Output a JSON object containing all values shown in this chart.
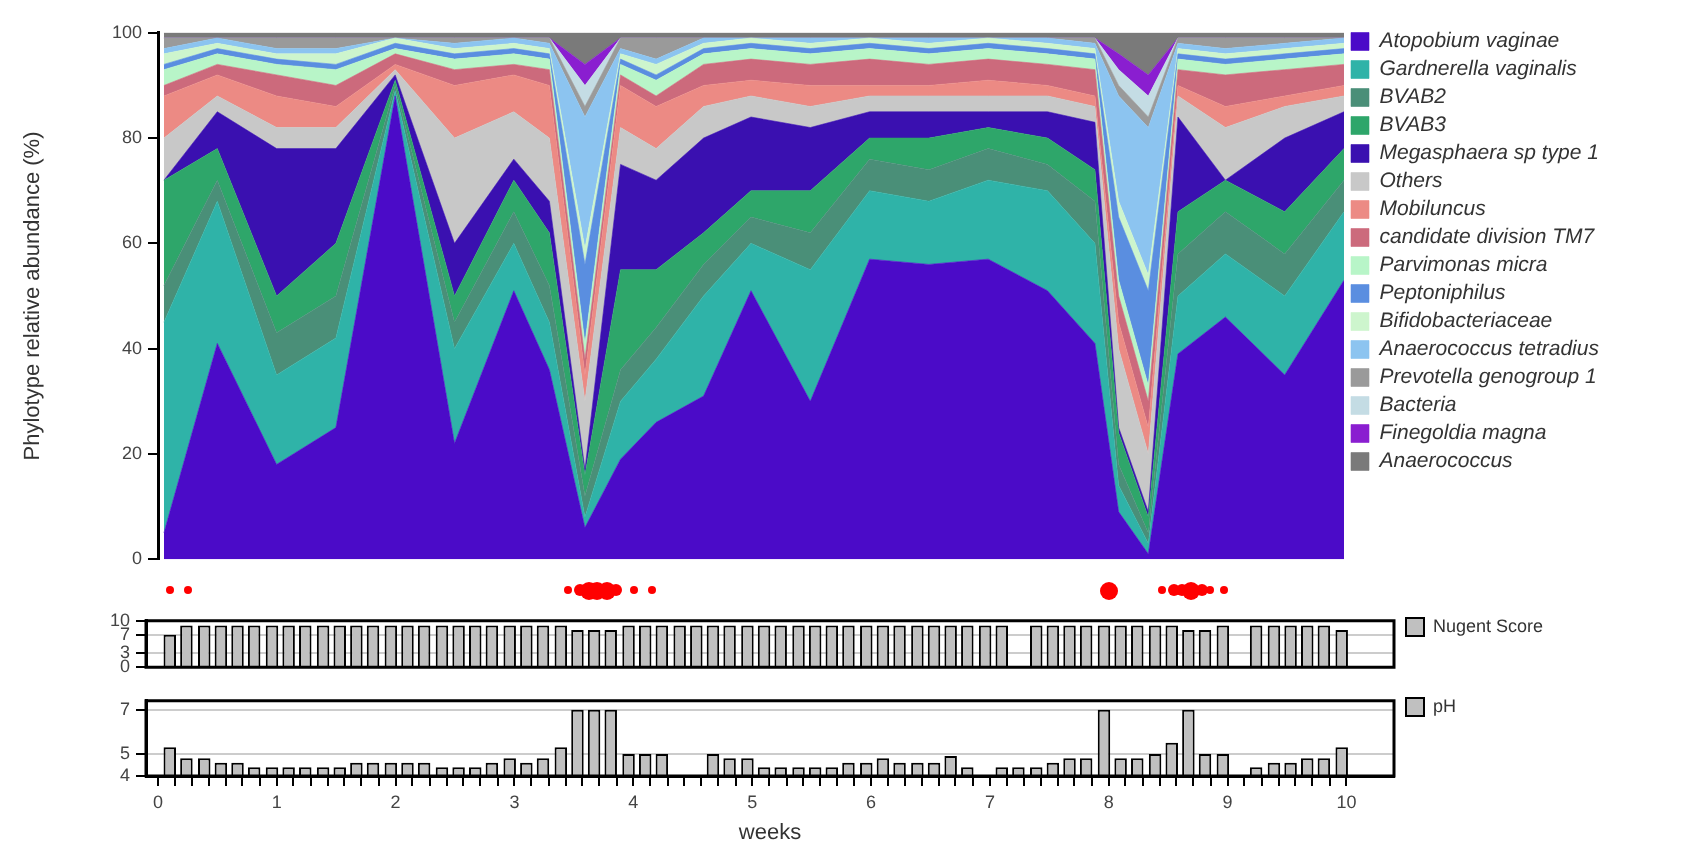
{
  "chart_data": [
    {
      "type": "area",
      "stacked": true,
      "ylabel": "Phylotype relative abundance (%)",
      "legend": "right",
      "tick_labels": "y",
      "xlim": [
        0,
        10
      ],
      "xticks": [
        0,
        1,
        2,
        3,
        4,
        5,
        6,
        7,
        8,
        9,
        10
      ],
      "ylim": [
        0,
        100
      ],
      "yticks": [
        0,
        20,
        40,
        60,
        80,
        100
      ],
      "x": [
        0.05,
        0.5,
        1,
        1.5,
        2,
        2.5,
        3,
        3.3,
        3.6,
        3.9,
        4.2,
        4.6,
        5,
        5.5,
        6,
        6.5,
        7,
        7.5,
        7.9,
        8.1,
        8.35,
        8.6,
        9,
        9.5,
        10
      ],
      "series": [
        {
          "name": "Atopobium vaginae",
          "color": "#4b0bc8",
          "values": [
            5,
            41,
            18,
            25,
            88,
            22,
            51,
            36,
            6,
            19,
            26,
            31,
            51,
            30,
            57,
            56,
            57,
            51,
            41,
            9,
            1,
            39,
            46,
            35,
            53
          ]
        },
        {
          "name": "Gardnerella vaginalis",
          "color": "#2fb3a8",
          "values": [
            40,
            27,
            17,
            17,
            1,
            18,
            9,
            9,
            2,
            11,
            12,
            19,
            9,
            25,
            13,
            12,
            15,
            19,
            19,
            5,
            2,
            11,
            12,
            15,
            13
          ]
        },
        {
          "name": "BVAB2",
          "color": "#4a8f78",
          "values": [
            7,
            4,
            8,
            8,
            1,
            5,
            6,
            7,
            4,
            6,
            6,
            6,
            5,
            7,
            6,
            6,
            6,
            5,
            8,
            4,
            2,
            8,
            8,
            8,
            6
          ]
        },
        {
          "name": "BVAB3",
          "color": "#2ea66a",
          "values": [
            20,
            6,
            7,
            10,
            1,
            5,
            6,
            10,
            4,
            19,
            11,
            6,
            5,
            8,
            4,
            6,
            4,
            5,
            6,
            6,
            3,
            8,
            6,
            8,
            6
          ]
        },
        {
          "name": "Megasphaera sp type 1",
          "color": "#3a10b0",
          "values": [
            0,
            7,
            28,
            18,
            1,
            10,
            4,
            6,
            1,
            20,
            17,
            18,
            14,
            12,
            5,
            5,
            3,
            5,
            9,
            1,
            1,
            18,
            0,
            14,
            7
          ]
        },
        {
          "name": "Others",
          "color": "#c8c8c8",
          "values": [
            8,
            3,
            4,
            4,
            1,
            20,
            9,
            12,
            13,
            7,
            6,
            6,
            4,
            4,
            3,
            3,
            3,
            3,
            3,
            15,
            11,
            4,
            10,
            6,
            3
          ]
        },
        {
          "name": "Mobiluncus",
          "color": "#ec8a84",
          "values": [
            8,
            4,
            6,
            4,
            1,
            10,
            7,
            10,
            5,
            8,
            8,
            4,
            3,
            4,
            2,
            2,
            3,
            2,
            2,
            5,
            5,
            2,
            4,
            2,
            2
          ]
        },
        {
          "name": "candidate division TM7",
          "color": "#cc6a7c",
          "values": [
            2,
            2,
            4,
            4,
            2,
            3,
            2,
            3,
            3,
            2,
            2,
            4,
            4,
            4,
            5,
            4,
            4,
            4,
            5,
            5,
            5,
            3,
            6,
            5,
            4
          ]
        },
        {
          "name": "Parvimonas micra",
          "color": "#b8f5c8",
          "values": [
            3,
            2,
            2,
            3,
            1,
            2,
            2,
            2,
            3,
            2,
            3,
            2,
            2,
            2,
            2,
            2,
            2,
            2,
            2,
            3,
            3,
            2,
            2,
            2,
            2
          ]
        },
        {
          "name": "Peptoniphilus",
          "color": "#5a8ee0",
          "values": [
            1,
            1,
            1,
            1,
            1,
            1,
            1,
            1,
            15,
            1,
            1,
            1,
            1,
            1,
            1,
            1,
            1,
            1,
            1,
            12,
            18,
            1,
            1,
            1,
            1
          ]
        },
        {
          "name": "Bifidobacteriaceae",
          "color": "#cdf5cd",
          "values": [
            2,
            1,
            1,
            2,
            1,
            1,
            1,
            1,
            3,
            1,
            2,
            1,
            1,
            1,
            1,
            1,
            1,
            1,
            1,
            3,
            3,
            1,
            1,
            1,
            1
          ]
        },
        {
          "name": "Anaerococcus tetradius",
          "color": "#8cc4f0",
          "values": [
            1,
            1,
            1,
            1,
            0,
            1,
            1,
            1,
            25,
            1,
            1,
            1,
            0,
            1,
            0,
            1,
            0,
            1,
            1,
            20,
            28,
            1,
            1,
            1,
            1
          ]
        },
        {
          "name": "Prevotella genogroup 1",
          "color": "#9a9a9a",
          "values": [
            2,
            0,
            2,
            2,
            0,
            1,
            0,
            1,
            2,
            2,
            4,
            0,
            0,
            0,
            0,
            0,
            0,
            0,
            1,
            2,
            2,
            1,
            2,
            1,
            0
          ]
        },
        {
          "name": "Bacteria",
          "color": "#c4dce4",
          "values": [
            0,
            0,
            0,
            0,
            0,
            0,
            0,
            0,
            4,
            0,
            0,
            0,
            0,
            0,
            0,
            0,
            0,
            0,
            0,
            3,
            4,
            0,
            0,
            0,
            0
          ]
        },
        {
          "name": "Finegoldia magna",
          "color": "#8a1ed0",
          "values": [
            0,
            0,
            0,
            0,
            0,
            0,
            0,
            0,
            4,
            0,
            0,
            0,
            0,
            0,
            0,
            0,
            0,
            0,
            0,
            3,
            4,
            0,
            0,
            0,
            0
          ]
        },
        {
          "name": "Anaerococcus",
          "color": "#7a7a7a",
          "values": [
            1,
            1,
            1,
            1,
            1,
            1,
            1,
            1,
            6,
            1,
            1,
            1,
            1,
            1,
            1,
            1,
            1,
            1,
            1,
            4,
            8,
            1,
            1,
            1,
            1
          ]
        }
      ]
    },
    {
      "type": "bar",
      "legend": "right",
      "tick_labels": "y",
      "grid": "y",
      "xlim": [
        -0.1,
        10.4
      ],
      "xticks": [
        0,
        1,
        2,
        3,
        4,
        5,
        6,
        7,
        8,
        9,
        10
      ],
      "ylim": [
        0,
        10
      ],
      "yticks": [
        0,
        3,
        7,
        10
      ],
      "x": [
        0.1,
        0.24,
        0.39,
        0.53,
        0.67,
        0.81,
        0.96,
        1.1,
        1.24,
        1.39,
        1.53,
        1.67,
        1.81,
        1.96,
        2.1,
        2.24,
        2.39,
        2.53,
        2.67,
        2.81,
        2.96,
        3.1,
        3.24,
        3.39,
        3.53,
        3.67,
        3.81,
        3.96,
        4.1,
        4.24,
        4.39,
        4.53,
        4.67,
        4.81,
        4.96,
        5.1,
        5.24,
        5.39,
        5.53,
        5.67,
        5.81,
        5.96,
        6.1,
        6.24,
        6.39,
        6.53,
        6.67,
        6.81,
        6.96,
        7.1,
        7.24,
        7.39,
        7.53,
        7.67,
        7.81,
        7.96,
        8.1,
        8.24,
        8.39,
        8.53,
        8.67,
        8.81,
        8.96,
        9.1,
        9.24,
        9.39,
        9.53,
        9.67,
        9.81,
        9.96
      ],
      "series": [
        {
          "name": "Nugent Score",
          "color": "#c0c0c0",
          "values": [
            7,
            9,
            9,
            9,
            9,
            9,
            9,
            9,
            9,
            9,
            9,
            9,
            9,
            9,
            9,
            9,
            9,
            9,
            9,
            9,
            9,
            9,
            9,
            9,
            8,
            8,
            8,
            9,
            9,
            9,
            9,
            9,
            9,
            9,
            9,
            9,
            9,
            9,
            9,
            9,
            9,
            9,
            9,
            9,
            9,
            9,
            9,
            9,
            9,
            9,
            null,
            9,
            9,
            9,
            9,
            9,
            9,
            9,
            9,
            9,
            8,
            8,
            9,
            null,
            9,
            9,
            9,
            9,
            9,
            8
          ]
        }
      ]
    },
    {
      "type": "bar",
      "legend": "right",
      "grid": "y",
      "xlabel": "weeks",
      "xlim": [
        -0.1,
        10.4
      ],
      "ylim": [
        4,
        7.4
      ],
      "yticks": [
        4,
        5,
        7
      ],
      "xticks": [
        0,
        {
          "value": 0.14,
          "label": null
        },
        {
          "value": 0.29,
          "label": null
        },
        {
          "value": 0.43,
          "label": null
        },
        {
          "value": 0.57,
          "label": null
        },
        {
          "value": 0.71,
          "label": null
        },
        {
          "value": 0.86,
          "label": null
        },
        1,
        {
          "value": 1.14,
          "label": null
        },
        {
          "value": 1.29,
          "label": null
        },
        {
          "value": 1.43,
          "label": null
        },
        {
          "value": 1.57,
          "label": null
        },
        {
          "value": 1.71,
          "label": null
        },
        {
          "value": 1.86,
          "label": null
        },
        2,
        {
          "value": 2.14,
          "label": null
        },
        {
          "value": 2.29,
          "label": null
        },
        {
          "value": 2.43,
          "label": null
        },
        {
          "value": 2.57,
          "label": null
        },
        {
          "value": 2.71,
          "label": null
        },
        {
          "value": 2.86,
          "label": null
        },
        3,
        {
          "value": 3.14,
          "label": null
        },
        {
          "value": 3.29,
          "label": null
        },
        {
          "value": 3.43,
          "label": null
        },
        {
          "value": 3.57,
          "label": null
        },
        {
          "value": 3.71,
          "label": null
        },
        {
          "value": 3.86,
          "label": null
        },
        4,
        {
          "value": 4.14,
          "label": null
        },
        {
          "value": 4.29,
          "label": null
        },
        {
          "value": 4.43,
          "label": null
        },
        {
          "value": 4.57,
          "label": null
        },
        {
          "value": 4.71,
          "label": null
        },
        {
          "value": 4.86,
          "label": null
        },
        5,
        {
          "value": 5.14,
          "label": null
        },
        {
          "value": 5.29,
          "label": null
        },
        {
          "value": 5.43,
          "label": null
        },
        {
          "value": 5.57,
          "label": null
        },
        {
          "value": 5.71,
          "label": null
        },
        {
          "value": 5.86,
          "label": null
        },
        6,
        {
          "value": 6.14,
          "label": null
        },
        {
          "value": 6.29,
          "label": null
        },
        {
          "value": 6.43,
          "label": null
        },
        {
          "value": 6.57,
          "label": null
        },
        {
          "value": 6.71,
          "label": null
        },
        {
          "value": 6.86,
          "label": null
        },
        7,
        {
          "value": 7.14,
          "label": null
        },
        {
          "value": 7.29,
          "label": null
        },
        {
          "value": 7.43,
          "label": null
        },
        {
          "value": 7.57,
          "label": null
        },
        {
          "value": 7.71,
          "label": null
        },
        {
          "value": 7.86,
          "label": null
        },
        8,
        {
          "value": 8.14,
          "label": null
        },
        {
          "value": 8.29,
          "label": null
        },
        {
          "value": 8.43,
          "label": null
        },
        {
          "value": 8.57,
          "label": null
        },
        {
          "value": 8.71,
          "label": null
        },
        {
          "value": 8.86,
          "label": null
        },
        9,
        {
          "value": 9.14,
          "label": null
        },
        {
          "value": 9.29,
          "label": null
        },
        {
          "value": 9.43,
          "label": null
        },
        {
          "value": 9.57,
          "label": null
        },
        {
          "value": 9.71,
          "label": null
        },
        {
          "value": 9.86,
          "label": null
        },
        10
      ],
      "x": [
        0.1,
        0.24,
        0.39,
        0.53,
        0.67,
        0.81,
        0.96,
        1.1,
        1.24,
        1.39,
        1.53,
        1.67,
        1.81,
        1.96,
        2.1,
        2.24,
        2.39,
        2.53,
        2.67,
        2.81,
        2.96,
        3.1,
        3.24,
        3.39,
        3.53,
        3.67,
        3.81,
        3.96,
        4.1,
        4.24,
        4.39,
        4.53,
        4.67,
        4.81,
        4.96,
        5.1,
        5.24,
        5.39,
        5.53,
        5.67,
        5.81,
        5.96,
        6.1,
        6.24,
        6.39,
        6.53,
        6.67,
        6.81,
        6.96,
        7.1,
        7.24,
        7.39,
        7.53,
        7.67,
        7.81,
        7.96,
        8.1,
        8.24,
        8.39,
        8.53,
        8.67,
        8.81,
        8.96,
        9.1,
        9.24,
        9.39,
        9.53,
        9.67,
        9.81,
        9.96
      ],
      "series": [
        {
          "name": "pH",
          "color": "#c0c0c0",
          "values": [
            5.3,
            4.8,
            4.8,
            4.6,
            4.6,
            4.4,
            4.4,
            4.4,
            4.4,
            4.4,
            4.4,
            4.6,
            4.6,
            4.6,
            4.6,
            4.6,
            4.4,
            4.4,
            4.4,
            4.6,
            4.8,
            4.6,
            4.8,
            5.3,
            7,
            7,
            7,
            5.0,
            5.0,
            5.0,
            null,
            null,
            5.0,
            4.8,
            4.8,
            4.4,
            4.4,
            4.4,
            4.4,
            4.4,
            4.6,
            4.6,
            4.8,
            4.6,
            4.6,
            4.6,
            4.9,
            4.4,
            null,
            4.4,
            4.4,
            4.4,
            4.6,
            4.8,
            4.8,
            7,
            4.8,
            4.8,
            5.0,
            5.5,
            7,
            5.0,
            5.0,
            null,
            4.4,
            4.6,
            4.6,
            4.8,
            4.8,
            5.3
          ]
        }
      ]
    }
  ]
}
